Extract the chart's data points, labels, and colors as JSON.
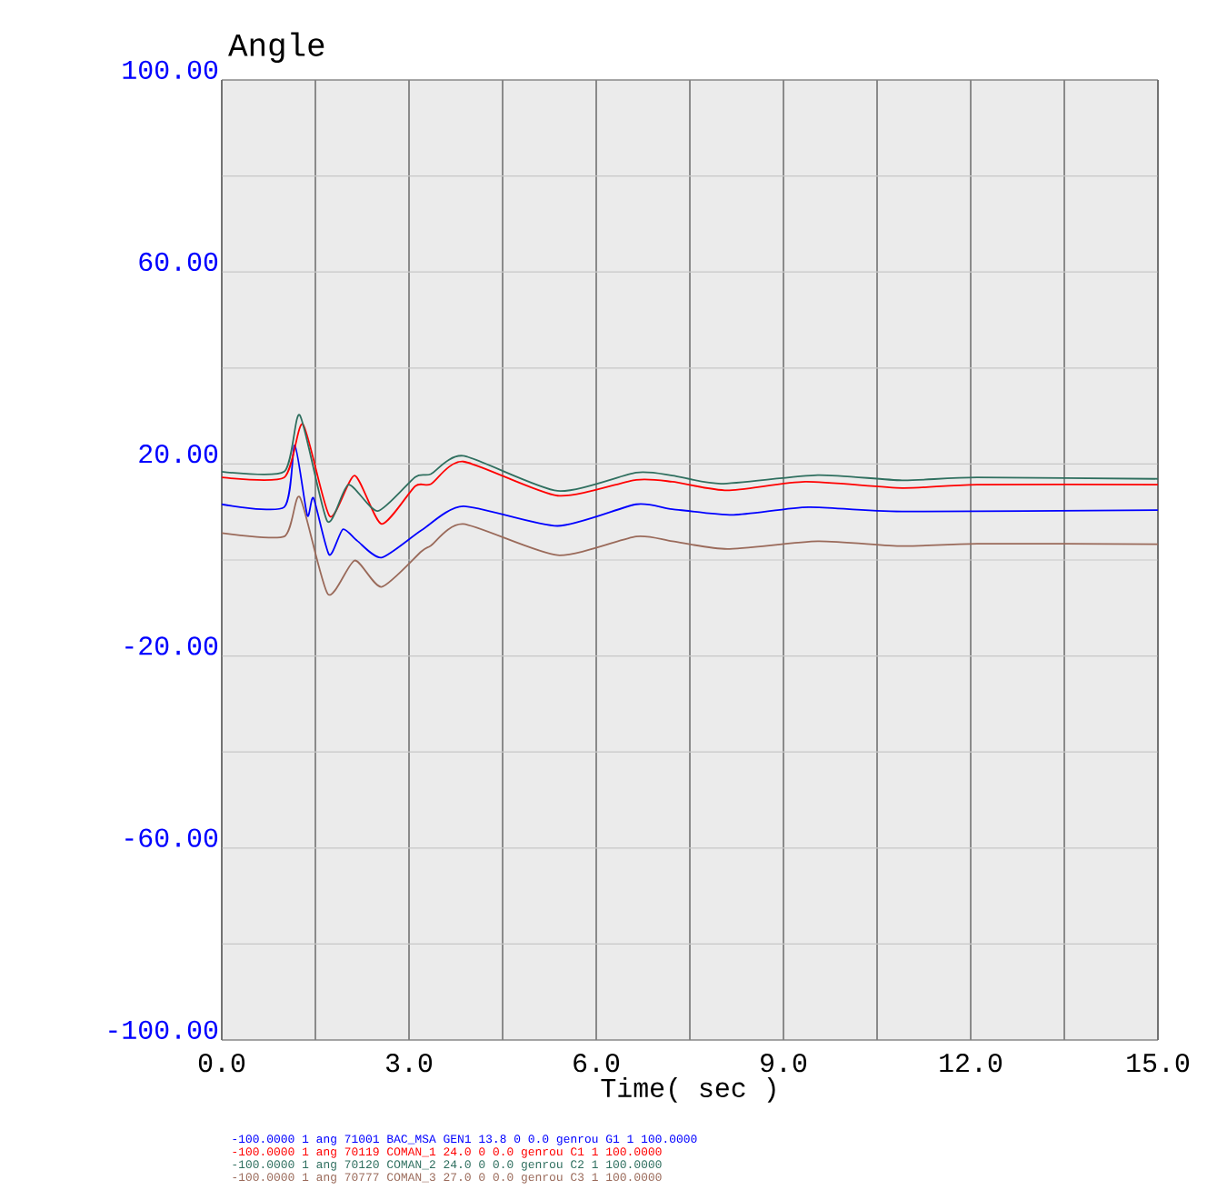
{
  "chart_data": {
    "type": "line",
    "title": "Angle",
    "xlabel": "Time( sec )",
    "xlim": [
      0,
      15
    ],
    "ylim": [
      -100,
      100
    ],
    "xticks": [
      {
        "value": 0,
        "label": "0.0"
      },
      {
        "value": 1.5,
        "label": null
      },
      {
        "value": 3,
        "label": "3.0"
      },
      {
        "value": 4.5,
        "label": null
      },
      {
        "value": 6,
        "label": "6.0"
      },
      {
        "value": 7.5,
        "label": null
      },
      {
        "value": 9,
        "label": "9.0"
      },
      {
        "value": 10.5,
        "label": null
      },
      {
        "value": 12,
        "label": "12.0"
      },
      {
        "value": 13.5,
        "label": null
      },
      {
        "value": 15,
        "label": "15.0"
      }
    ],
    "yticks": [
      {
        "value": -100,
        "label": "-100.00"
      },
      {
        "value": -80,
        "label": null
      },
      {
        "value": -60,
        "label": "-60.00"
      },
      {
        "value": -40,
        "label": null
      },
      {
        "value": -20,
        "label": "-20.00"
      },
      {
        "value": 0,
        "label": null
      },
      {
        "value": 20,
        "label": "20.00"
      },
      {
        "value": 40,
        "label": null
      },
      {
        "value": 60,
        "label": "60.00"
      },
      {
        "value": 80,
        "label": null
      },
      {
        "value": 100,
        "label": "100.00"
      }
    ],
    "grid": true,
    "legend": "bottom",
    "series": [
      {
        "name": "-100.0000 1 ang 71001 BAC_MSA GEN1 13.8 0 0.0 genrou G1 1 100.0000",
        "color": "#0000ff",
        "x": [
          0,
          1.0,
          1.17,
          1.37,
          1.47,
          1.72,
          1.94,
          2.17,
          2.56,
          3.2,
          3.87,
          5.38,
          6.64,
          7.22,
          8.2,
          9.4,
          10.9,
          15
        ],
        "values": [
          11.6,
          11.0,
          23.9,
          9.3,
          12.9,
          1.1,
          6.4,
          4.0,
          0.5,
          6.2,
          11.2,
          7.1,
          11.6,
          10.6,
          9.4,
          11.0,
          10.1,
          10.4
        ]
      },
      {
        "name": "-100.0000 1 ang 70119 COMAN_1 24.0 0 0.0 genrou C1 1 100.0000",
        "color": "#ff0000",
        "x": [
          0,
          1.0,
          1.3,
          1.73,
          2.13,
          2.56,
          3.1,
          3.35,
          3.87,
          5.38,
          6.64,
          7.22,
          8.1,
          9.35,
          10.9,
          12.1,
          15
        ],
        "values": [
          17.2,
          17.2,
          28.3,
          9.1,
          17.6,
          7.5,
          15.4,
          15.8,
          20.5,
          13.4,
          16.7,
          16.3,
          14.5,
          16.3,
          15.0,
          15.7,
          15.7
        ]
      },
      {
        "name": "-100.0000 1 ang 70120 COMAN_2 24.0 0 0.0 genrou C2 1 100.0000",
        "color": "#2f6f5f",
        "x": [
          0,
          1.0,
          1.25,
          1.69,
          2.03,
          2.5,
          3.1,
          3.35,
          3.87,
          5.38,
          6.64,
          7.22,
          8.0,
          9.55,
          10.9,
          12.1,
          15
        ],
        "values": [
          18.4,
          18.4,
          30.2,
          8.1,
          15.7,
          10.2,
          17.3,
          17.9,
          21.7,
          14.4,
          18.2,
          17.6,
          15.9,
          17.7,
          16.6,
          17.2,
          16.9
        ]
      },
      {
        "name": "-100.0000 1 ang 70777 COMAN_3 27.0 0 0.0 genrou C3 1 100.0000",
        "color": "#9a6a5a",
        "x": [
          0,
          1.0,
          1.25,
          1.7,
          2.13,
          2.56,
          3.2,
          3.35,
          3.87,
          5.38,
          6.64,
          7.22,
          8.1,
          9.55,
          10.9,
          12.1,
          15
        ],
        "values": [
          5.6,
          4.9,
          13.1,
          -7.1,
          -0.1,
          -5.6,
          1.8,
          3.0,
          7.5,
          1.0,
          4.9,
          3.9,
          2.3,
          3.9,
          2.9,
          3.4,
          3.3
        ]
      }
    ]
  }
}
